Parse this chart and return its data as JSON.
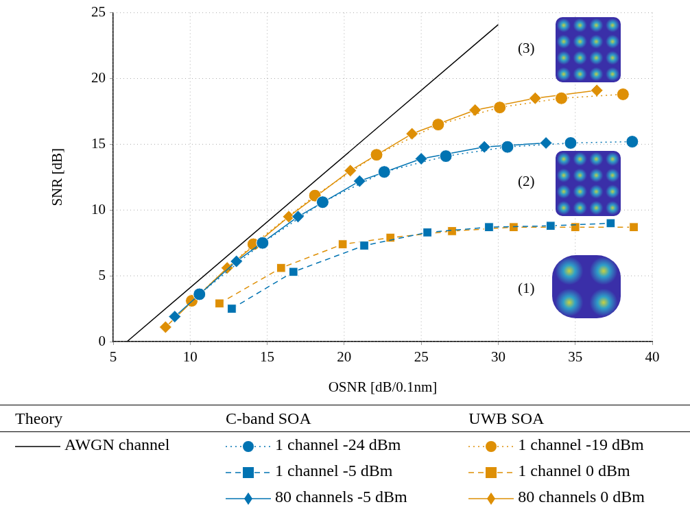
{
  "chart_data": {
    "type": "line",
    "xlabel": "OSNR [dB/0.1nm]",
    "ylabel": "SNR [dB]",
    "xlim": [
      5,
      40
    ],
    "xticks": [
      5,
      10,
      15,
      20,
      25,
      30,
      35,
      40
    ],
    "ylim": [
      0,
      25
    ],
    "yticks": [
      0,
      5,
      10,
      15,
      20,
      25
    ],
    "grid": true,
    "legend": "bottom",
    "annotations": [
      "Theory",
      "C-band SOA",
      "UWB SOA",
      "(3)",
      "(2)",
      "(1)"
    ],
    "series": [
      {
        "name": "AWGN channel",
        "color": "#000000",
        "marker": "none",
        "line_style": "solid",
        "x": [
          5.9,
          30
        ],
        "values": [
          0,
          24.1
        ]
      },
      {
        "name": "1 channel -24 dBm",
        "color": "#0173b2",
        "marker": "circle",
        "line_style": "dotted",
        "x": [
          10.6,
          14.7,
          18.6,
          22.6,
          26.6,
          30.6,
          34.7,
          38.7
        ],
        "values": [
          3.6,
          7.5,
          10.6,
          12.9,
          14.1,
          14.8,
          15.1,
          15.2
        ]
      },
      {
        "name": "1 channel -5 dBm",
        "color": "#0173b2",
        "marker": "square",
        "line_style": "dashed",
        "x": [
          12.7,
          16.7,
          21.3,
          25.4,
          29.4,
          33.4,
          37.3
        ],
        "values": [
          2.5,
          5.3,
          7.3,
          8.3,
          8.7,
          8.8,
          9.0
        ]
      },
      {
        "name": "80 channels -5 dBm",
        "color": "#0173b2",
        "marker": "diamond",
        "line_style": "solid",
        "x": [
          9.0,
          13.0,
          17.0,
          21.0,
          25.0,
          29.1,
          33.1
        ],
        "values": [
          1.9,
          6.1,
          9.5,
          12.2,
          13.9,
          14.8,
          15.1
        ]
      },
      {
        "name": "1 channel -19 dBm",
        "color": "#de8f05",
        "marker": "circle",
        "line_style": "dotted",
        "x": [
          10.1,
          14.1,
          18.1,
          22.1,
          26.1,
          30.1,
          34.1,
          38.1
        ],
        "values": [
          3.1,
          7.4,
          11.1,
          14.2,
          16.5,
          17.8,
          18.5,
          18.8
        ]
      },
      {
        "name": "1 channel 0 dBm",
        "color": "#de8f05",
        "marker": "square",
        "line_style": "dashed",
        "x": [
          11.9,
          15.9,
          19.9,
          23.0,
          27.0,
          31.0,
          35.0,
          38.8
        ],
        "values": [
          2.9,
          5.6,
          7.4,
          7.9,
          8.4,
          8.7,
          8.7,
          8.7
        ]
      },
      {
        "name": "80 channels 0 dBm",
        "color": "#de8f05",
        "marker": "diamond",
        "line_style": "solid",
        "x": [
          8.4,
          12.4,
          16.4,
          20.4,
          24.4,
          28.5,
          32.4,
          36.4
        ],
        "values": [
          1.1,
          5.6,
          9.5,
          13.0,
          15.8,
          17.6,
          18.5,
          19.1
        ]
      }
    ]
  }
}
